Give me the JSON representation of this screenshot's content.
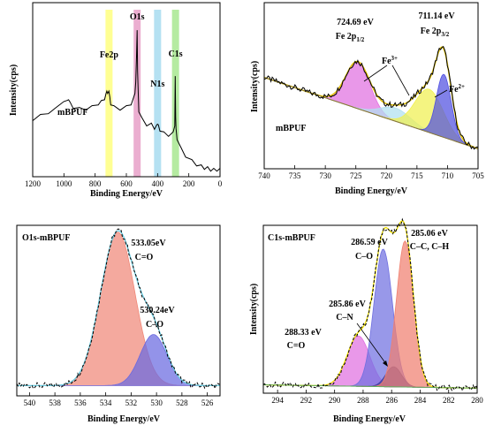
{
  "chart_data": [
    {
      "type": "line",
      "title": "",
      "xlabel": "Binding Energy/eV",
      "ylabel": "Intensity(cps)",
      "xlim": [
        1200,
        0
      ],
      "x_reversed": true,
      "xticks": [
        1200,
        1000,
        800,
        600,
        400,
        200,
        0
      ],
      "sample_label": "mBPUF",
      "series": [
        {
          "x": [
            1200,
            1150,
            1100,
            1050,
            1000,
            980,
            970,
            960,
            940,
            900,
            860,
            820,
            780,
            760,
            740,
            730,
            725,
            720,
            712,
            706,
            700,
            680,
            640,
            600,
            570,
            545,
            540,
            535,
            531,
            528,
            520,
            500,
            470,
            440,
            420,
            405,
            400,
            395,
            385,
            360,
            330,
            300,
            290,
            287,
            284,
            282,
            275,
            250,
            220,
            180,
            150,
            120,
            100,
            80,
            60,
            40,
            20,
            0
          ],
          "y": [
            0.33,
            0.35,
            0.37,
            0.39,
            0.44,
            0.43,
            0.45,
            0.42,
            0.4,
            0.39,
            0.39,
            0.4,
            0.42,
            0.43,
            0.45,
            0.47,
            0.5,
            0.47,
            0.5,
            0.45,
            0.42,
            0.4,
            0.39,
            0.4,
            0.42,
            0.47,
            0.55,
            0.68,
            0.85,
            0.6,
            0.38,
            0.33,
            0.3,
            0.3,
            0.28,
            0.29,
            0.31,
            0.29,
            0.27,
            0.25,
            0.24,
            0.25,
            0.3,
            0.57,
            0.35,
            0.27,
            0.22,
            0.16,
            0.12,
            0.09,
            0.07,
            0.06,
            0.05,
            0.05,
            0.04,
            0.04,
            0.04,
            0.04
          ]
        }
      ],
      "bands": [
        {
          "label": "Fe2p",
          "x": 711,
          "color": "#ffff80"
        },
        {
          "label": "O1s",
          "x": 531,
          "color": "#e8a0c8"
        },
        {
          "label": "N1s",
          "x": 400,
          "color": "#a8dcf0"
        },
        {
          "label": "C1s",
          "x": 285,
          "color": "#a8e890"
        }
      ],
      "grid": false
    },
    {
      "type": "area",
      "title": "",
      "xlabel": "Binding Energy/eV",
      "ylabel": "Intensity(cps)",
      "xlim": [
        740,
        705
      ],
      "x_reversed": true,
      "xticks": [
        740,
        735,
        730,
        725,
        720,
        715,
        710,
        705
      ],
      "sample_label": "mBPUF",
      "annotations": [
        {
          "text": "724.69 eV",
          "x": 724.69
        },
        {
          "text": "Fe 2p",
          "sub": "1/2",
          "x": 724.69
        },
        {
          "text": "711.14 eV",
          "x": 711.14
        },
        {
          "text": "Fe 2p",
          "sub": "3/2",
          "x": 711.14
        },
        {
          "text": "Fe",
          "sup": "3+"
        },
        {
          "text": "Fe",
          "sup": "2+"
        }
      ],
      "background": {
        "x": [
          740,
          705
        ],
        "y": [
          0.55,
          0.12
        ]
      },
      "components": [
        {
          "center": 724.69,
          "height": 0.28,
          "width": 2.0,
          "color": "#e070e0"
        },
        {
          "center": 718.5,
          "height": 0.08,
          "width": 2.5,
          "color": "#b0e0f0"
        },
        {
          "center": 713.0,
          "height": 0.26,
          "width": 2.3,
          "color": "#f0f050"
        },
        {
          "center": 710.6,
          "height": 0.38,
          "width": 1.2,
          "color": "#5050e0"
        }
      ],
      "envelope_color": "#e0c000",
      "data_color": "#000000",
      "grid": false
    },
    {
      "type": "area",
      "title": "",
      "xlabel": "Binding Energy/eV",
      "ylabel": "Intensity(cps)",
      "xlim": [
        541,
        525
      ],
      "x_reversed": true,
      "xticks": [
        540,
        538,
        536,
        534,
        532,
        530,
        528,
        526
      ],
      "sample_label": "O1s-mBPUF",
      "annotations": [
        {
          "text": "533.05eV",
          "x": 533.05
        },
        {
          "text": "C=O",
          "x": 533.05
        },
        {
          "text": "530.24eV",
          "x": 530.24
        },
        {
          "text": "C–O",
          "x": 530.24
        }
      ],
      "background": {
        "x": [
          541,
          525
        ],
        "y": [
          0.06,
          0.06
        ]
      },
      "components": [
        {
          "center": 533.05,
          "height": 0.9,
          "width": 1.35,
          "color": "#f08878"
        },
        {
          "center": 530.24,
          "height": 0.3,
          "width": 1.05,
          "color": "#6a6ae0"
        }
      ],
      "envelope_color": "#6acbe0",
      "data_color": "#000000",
      "grid": false
    },
    {
      "type": "area",
      "title": "",
      "xlabel": "Binding Energy/eV",
      "ylabel": "Intensity(cps)",
      "xlim": [
        295,
        280
      ],
      "x_reversed": true,
      "xticks": [
        294,
        292,
        290,
        288,
        286,
        284,
        282,
        280
      ],
      "sample_label": "C1s-mBPUF",
      "annotations": [
        {
          "text": "285.06 eV",
          "x": 285.06
        },
        {
          "text": "C–C, C–H",
          "x": 285.06
        },
        {
          "text": "286.59 eV",
          "x": 286.59
        },
        {
          "text": "C–O",
          "x": 286.59
        },
        {
          "text": "285.86 eV",
          "x": 285.86
        },
        {
          "text": "C–N",
          "x": 285.86
        },
        {
          "text": "288.33 eV",
          "x": 288.33
        },
        {
          "text": "C=O",
          "x": 288.33
        }
      ],
      "background": {
        "x": [
          295,
          280
        ],
        "y": [
          0.05,
          0.03
        ]
      },
      "components": [
        {
          "center": 288.33,
          "height": 0.3,
          "width": 0.8,
          "color": "#e070e0"
        },
        {
          "center": 286.59,
          "height": 0.82,
          "width": 0.65,
          "color": "#7070e0"
        },
        {
          "center": 285.86,
          "height": 0.12,
          "width": 0.55,
          "color": "#3c3c9c"
        },
        {
          "center": 285.06,
          "height": 0.87,
          "width": 0.6,
          "color": "#f08070"
        }
      ],
      "envelope_color": "#f0e000",
      "data_color": "#000000",
      "grid": false
    }
  ]
}
